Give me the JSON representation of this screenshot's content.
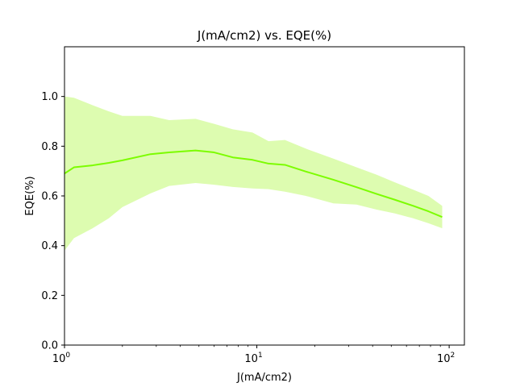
{
  "chart_data": {
    "type": "line",
    "title": "J(mA/cm2) vs. EQE(%)",
    "xlabel": "J(mA/cm2)",
    "ylabel": "EQE(%)",
    "xscale": "log",
    "xlim": [
      1,
      120
    ],
    "ylim": [
      0,
      1.2
    ],
    "grid": false,
    "legend": "none",
    "x_ticks": [
      {
        "value": 1,
        "base": "10",
        "exp": "0"
      },
      {
        "value": 10,
        "base": "10",
        "exp": "1"
      },
      {
        "value": 100,
        "base": "10",
        "exp": "2"
      }
    ],
    "y_ticks": [
      "0.0",
      "0.2",
      "0.4",
      "0.6",
      "0.8",
      "1.0"
    ],
    "line_color": "#7cfc00",
    "band_color": "#ddfcb0",
    "series": [
      {
        "x": [
          1.0,
          1.12,
          1.4,
          1.7,
          2.0,
          2.8,
          3.5,
          4.8,
          6.0,
          7.5,
          9.5,
          11.5,
          14.0,
          18.0,
          25.0,
          33.0,
          42.0,
          52.0,
          65.0,
          78.0,
          92.0
        ],
        "y": [
          0.69,
          0.715,
          0.723,
          0.733,
          0.743,
          0.768,
          0.775,
          0.783,
          0.775,
          0.755,
          0.745,
          0.73,
          0.725,
          0.698,
          0.665,
          0.635,
          0.608,
          0.585,
          0.56,
          0.538,
          0.515
        ],
        "upper": [
          1.0,
          0.995,
          0.965,
          0.94,
          0.922,
          0.922,
          0.905,
          0.91,
          0.89,
          0.868,
          0.855,
          0.82,
          0.825,
          0.79,
          0.75,
          0.715,
          0.685,
          0.655,
          0.625,
          0.6,
          0.56
        ],
        "lower": [
          0.38,
          0.43,
          0.47,
          0.51,
          0.555,
          0.61,
          0.64,
          0.652,
          0.645,
          0.636,
          0.63,
          0.627,
          0.617,
          0.6,
          0.57,
          0.565,
          0.545,
          0.53,
          0.51,
          0.49,
          0.47
        ]
      }
    ]
  }
}
